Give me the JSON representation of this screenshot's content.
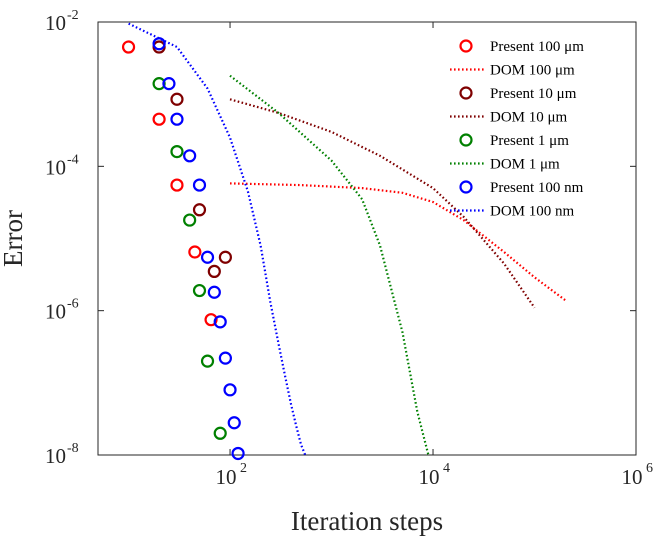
{
  "chart_data": {
    "type": "scatter+line",
    "title": "",
    "xlabel": "Iteration steps",
    "ylabel": "Error",
    "xscale": "log",
    "yscale": "log",
    "xlim": [
      5,
      1000000
    ],
    "ylim": [
      1e-08,
      0.01
    ],
    "x_ticks": [
      {
        "value": 100,
        "base": "10",
        "exp": "2"
      },
      {
        "value": 10000,
        "base": "10",
        "exp": "4"
      },
      {
        "value": 1000000,
        "base": "10",
        "exp": "6"
      }
    ],
    "y_ticks": [
      {
        "value": 1e-08,
        "base": "10",
        "exp": "-8"
      },
      {
        "value": 1e-06,
        "base": "10",
        "exp": "-6"
      },
      {
        "value": 0.0001,
        "base": "10",
        "exp": "-4"
      },
      {
        "value": 0.01,
        "base": "10",
        "exp": "-2"
      }
    ],
    "legend_position": "top-right",
    "series": [
      {
        "name": "Present 100 μm",
        "kind": "markers",
        "color": "#ff0000",
        "x": [
          10,
          20,
          30,
          45,
          65
        ],
        "y": [
          0.0045,
          0.00045,
          5.5e-05,
          6.5e-06,
          7.5e-07
        ]
      },
      {
        "name": "DOM 100 μm",
        "kind": "dotted-line",
        "color": "#ff0000",
        "x": [
          100,
          500,
          2000,
          5000,
          10000,
          20000,
          50000,
          100000,
          200000
        ],
        "y": [
          5.8e-05,
          5.5e-05,
          5e-05,
          4.3e-05,
          3.2e-05,
          1.8e-05,
          6.5e-06,
          2.9e-06,
          1.4e-06
        ]
      },
      {
        "name": "Present 10 μm",
        "kind": "markers",
        "color": "#7f0000",
        "x": [
          20,
          30,
          50,
          70,
          90
        ],
        "y": [
          0.0045,
          0.00085,
          2.5e-05,
          3.5e-06,
          5.5e-06
        ]
      },
      {
        "name": "DOM 10 μm",
        "kind": "dotted-line",
        "color": "#7f0000",
        "x": [
          100,
          300,
          1000,
          3000,
          10000,
          20000,
          50000,
          100000
        ],
        "y": [
          0.00085,
          0.00055,
          0.0003,
          0.00014,
          5e-05,
          2e-05,
          4.5e-06,
          1.1e-06
        ]
      },
      {
        "name": "Present 1 μm",
        "kind": "markers",
        "color": "#008000",
        "x": [
          20,
          30,
          40,
          50,
          60,
          80
        ],
        "y": [
          0.0014,
          0.00016,
          1.8e-05,
          1.9e-06,
          2e-07,
          2e-08
        ]
      },
      {
        "name": "DOM 1 μm",
        "kind": "dotted-line",
        "color": "#008000",
        "x": [
          100,
          300,
          1000,
          2000,
          3000,
          5000,
          7000,
          9000
        ],
        "y": [
          0.0018,
          0.00055,
          0.00012,
          3.5e-05,
          8e-06,
          5e-07,
          4e-08,
          1e-08
        ]
      },
      {
        "name": "Present 100 nm",
        "kind": "markers",
        "color": "#0000ff",
        "x": [
          20,
          25,
          30,
          40,
          50,
          60,
          70,
          80,
          90,
          100,
          110,
          120
        ],
        "y": [
          0.005,
          0.0014,
          0.00045,
          0.00014,
          5.5e-05,
          5.5e-06,
          1.8e-06,
          7e-07,
          2.2e-07,
          8e-08,
          2.8e-08,
          1.05e-08
        ]
      },
      {
        "name": "DOM 100 nm",
        "kind": "dotted-line",
        "color": "#0000ff",
        "x": [
          10,
          30,
          60,
          100,
          150,
          200,
          250,
          300,
          350,
          400,
          450,
          500,
          550
        ],
        "y": [
          0.0095,
          0.0045,
          0.0012,
          0.00025,
          4.5e-05,
          8e-06,
          1.3e-06,
          3.5e-07,
          1.2e-07,
          5e-08,
          2.5e-08,
          1.4e-08,
          1e-08
        ]
      }
    ]
  }
}
